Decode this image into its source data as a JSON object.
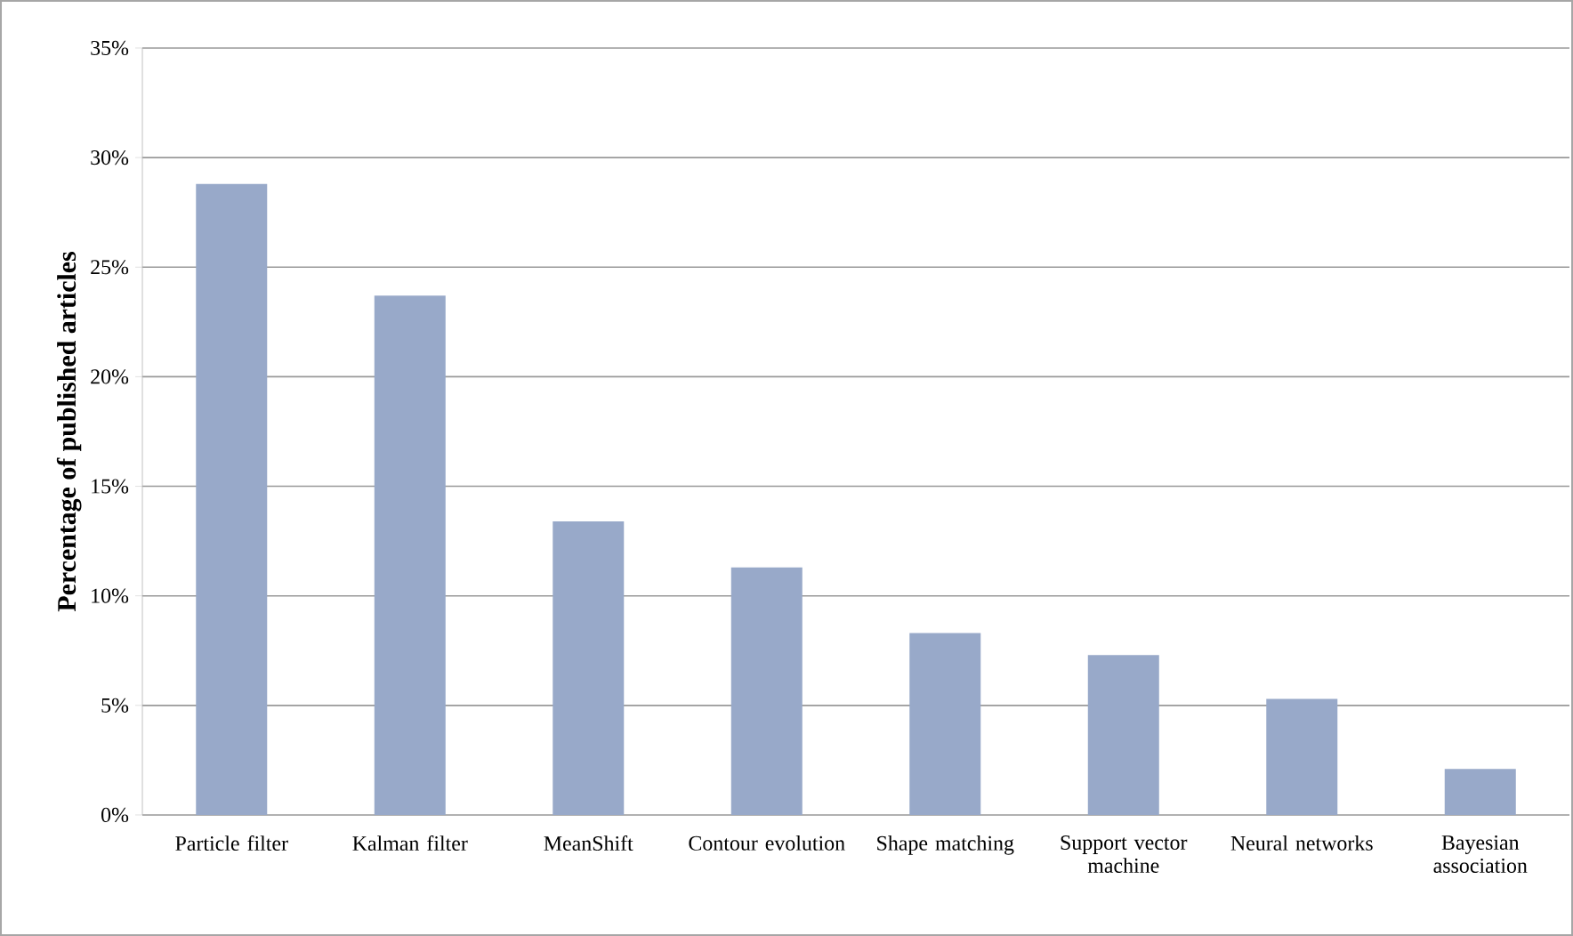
{
  "chart_data": {
    "type": "bar",
    "ylabel": "Percentage of published articles",
    "categories": [
      "Particle filter",
      "Kalman filter",
      "MeanShift",
      "Contour evolution",
      "Shape matching",
      "Support vector machine",
      "Neural networks",
      "Bayesian association"
    ],
    "values": [
      28.8,
      23.7,
      13.4,
      11.3,
      8.3,
      7.3,
      5.3,
      2.1
    ],
    "color": "#98a9c9",
    "ylim": [
      0,
      35
    ],
    "yticks": [
      {
        "value": 0,
        "label": "0%"
      },
      {
        "value": 5,
        "label": "5%"
      },
      {
        "value": 10,
        "label": "10%"
      },
      {
        "value": 15,
        "label": "15%"
      },
      {
        "value": 20,
        "label": "20%"
      },
      {
        "value": 25,
        "label": "25%"
      },
      {
        "value": 30,
        "label": "30%"
      },
      {
        "value": 35,
        "label": "35%"
      }
    ],
    "grid": "y"
  }
}
